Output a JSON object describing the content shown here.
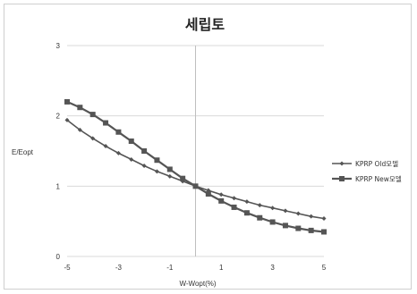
{
  "chart_data": {
    "type": "line",
    "title": "세립토",
    "xlabel": "W-Wopt(%)",
    "ylabel": "E/Eopt",
    "xlim": [
      -5,
      5
    ],
    "ylim": [
      0,
      3
    ],
    "x_ticks": [
      "-5",
      "-3",
      "-1",
      "1",
      "3",
      "5"
    ],
    "x_tick_values": [
      -5,
      -3,
      -1,
      1,
      3,
      5
    ],
    "y_ticks": [
      "0",
      "1",
      "2",
      "3"
    ],
    "y_tick_values": [
      0,
      1,
      2,
      3
    ],
    "grid": "horizontal",
    "legend_position": "right",
    "series": [
      {
        "name": "KPRP Old모델",
        "color": "#555555",
        "marker": "diamond",
        "x": [
          -5,
          -4.5,
          -4,
          -3.5,
          -3,
          -2.5,
          -2,
          -1.5,
          -1,
          -0.5,
          0,
          0.5,
          1,
          1.5,
          2,
          2.5,
          3,
          3.5,
          4,
          4.5,
          5
        ],
        "y": [
          1.94,
          1.8,
          1.68,
          1.57,
          1.47,
          1.38,
          1.29,
          1.21,
          1.14,
          1.07,
          1.0,
          0.94,
          0.88,
          0.83,
          0.78,
          0.73,
          0.69,
          0.65,
          0.61,
          0.57,
          0.54
        ]
      },
      {
        "name": "KPRP New모델",
        "color": "#555555",
        "marker": "square",
        "x": [
          -5,
          -4.5,
          -4,
          -3.5,
          -3,
          -2.5,
          -2,
          -1.5,
          -1,
          -0.5,
          0,
          0.5,
          1,
          1.5,
          2,
          2.5,
          3,
          3.5,
          4,
          4.5,
          5
        ],
        "y": [
          2.2,
          2.12,
          2.02,
          1.9,
          1.77,
          1.64,
          1.5,
          1.37,
          1.24,
          1.11,
          1.0,
          0.89,
          0.79,
          0.7,
          0.62,
          0.55,
          0.49,
          0.44,
          0.4,
          0.37,
          0.35
        ]
      }
    ]
  }
}
